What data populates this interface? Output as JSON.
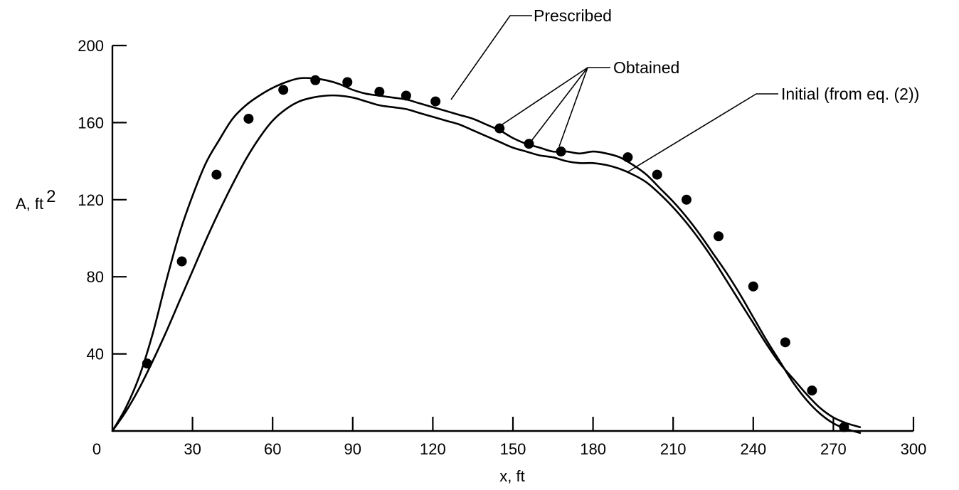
{
  "chart_data": {
    "type": "line",
    "xlabel": "x, ft",
    "ylabel": "A, ft",
    "ylabel_sup": "2",
    "xlim": [
      0,
      300
    ],
    "ylim": [
      0,
      200
    ],
    "x_ticks": [
      0,
      30,
      60,
      90,
      120,
      150,
      180,
      210,
      240,
      270,
      300
    ],
    "x_tick_labels": [
      "0",
      "30",
      "60",
      "90",
      "120",
      "150",
      "180",
      "210",
      "240",
      "270",
      "300"
    ],
    "y_ticks": [
      40,
      80,
      120,
      160,
      200
    ],
    "y_tick_labels": [
      "40",
      "80",
      "120",
      "160",
      "200"
    ],
    "grid": false,
    "series": [
      {
        "name": "Prescribed",
        "style": "line",
        "x": [
          0,
          5,
          10,
          15,
          20,
          25,
          30,
          35,
          40,
          45,
          50,
          55,
          60,
          65,
          70,
          75,
          80,
          85,
          90,
          95,
          100,
          105,
          110,
          115,
          120,
          125,
          130,
          135,
          140,
          145,
          150,
          155,
          160,
          165,
          170,
          175,
          180,
          185,
          190,
          195,
          200,
          205,
          210,
          215,
          220,
          225,
          230,
          235,
          240,
          245,
          250,
          255,
          260,
          265,
          270,
          275,
          280
        ],
        "y": [
          0,
          12,
          28,
          50,
          77,
          102,
          122,
          139,
          151,
          162,
          169,
          174,
          178,
          181,
          183,
          183,
          182,
          180,
          177,
          175,
          174,
          173,
          172,
          170,
          168,
          166,
          164,
          162,
          159,
          156,
          152,
          149,
          147,
          145,
          145,
          144,
          145,
          144,
          142,
          138,
          133,
          126,
          119,
          111,
          102,
          92,
          82,
          71,
          59,
          47,
          36,
          25,
          16,
          9,
          4,
          1,
          -1
        ]
      },
      {
        "name": "Initial (from eq. (2))",
        "style": "line",
        "x": [
          0,
          5,
          10,
          15,
          20,
          25,
          30,
          35,
          40,
          45,
          50,
          55,
          60,
          65,
          70,
          75,
          80,
          85,
          90,
          95,
          100,
          105,
          110,
          115,
          120,
          125,
          130,
          135,
          140,
          145,
          150,
          155,
          160,
          165,
          170,
          175,
          180,
          185,
          190,
          195,
          200,
          205,
          210,
          215,
          220,
          225,
          230,
          235,
          240,
          245,
          250,
          255,
          260,
          265,
          270,
          275,
          280
        ],
        "y": [
          0,
          10,
          22,
          36,
          51,
          67,
          83,
          99,
          114,
          128,
          141,
          152,
          161,
          167,
          171,
          173,
          174,
          174,
          173,
          171,
          169,
          168,
          167,
          165,
          163,
          161,
          159,
          156,
          153,
          150,
          147,
          145,
          143,
          142,
          140,
          139,
          139,
          138,
          136,
          133,
          129,
          123,
          116,
          108,
          99,
          89,
          78,
          67,
          56,
          45,
          35,
          27,
          19,
          12,
          7,
          4,
          2
        ]
      },
      {
        "name": "Obtained",
        "style": "points",
        "x": [
          13,
          26,
          39,
          51,
          64,
          76,
          88,
          100,
          110,
          121,
          145,
          156,
          168,
          193,
          204,
          215,
          227,
          240,
          252,
          262,
          274
        ],
        "y": [
          35,
          88,
          133,
          162,
          177,
          182,
          181,
          176,
          174,
          171,
          157,
          149,
          145,
          142,
          133,
          120,
          101,
          75,
          46,
          21,
          2
        ]
      }
    ],
    "annotations": [
      {
        "label": "Prescribed",
        "series": "Prescribed"
      },
      {
        "label": "Obtained",
        "series": "Obtained"
      },
      {
        "label": "Initial (from eq. (2))",
        "series": "Initial (from eq. (2))"
      }
    ]
  }
}
